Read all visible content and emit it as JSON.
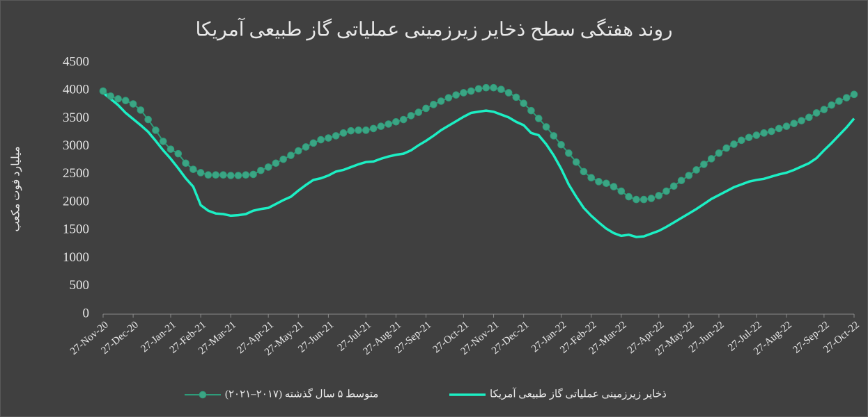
{
  "chart_data": {
    "type": "line",
    "title": "روند هفتگی سطح ذخایر زیرزمینی عملیاتی گاز طبیعی آمریکا",
    "y_label": "میلیارد فوت مکعب",
    "categories": [
      "27-Nov-20",
      null,
      null,
      null,
      "27-Dec-20",
      null,
      null,
      null,
      null,
      "27-Jan-21",
      null,
      null,
      null,
      "27-Feb-21",
      null,
      null,
      null,
      "27-Mar-21",
      null,
      null,
      null,
      null,
      "27-Apr-21",
      null,
      null,
      null,
      "27-May-21",
      null,
      null,
      null,
      "27-Jun-21",
      null,
      null,
      null,
      null,
      "27-Jul-21",
      null,
      null,
      null,
      "27-Aug-21",
      null,
      null,
      null,
      "27-Sep-21",
      null,
      null,
      null,
      null,
      "27-Oct-21",
      null,
      null,
      null,
      "27-Nov-21",
      null,
      null,
      null,
      "27-Dec-21",
      null,
      null,
      null,
      null,
      "27-Jan-22",
      null,
      null,
      null,
      "27-Feb-22",
      null,
      null,
      null,
      "27-Mar-22",
      null,
      null,
      null,
      null,
      "27-Apr-22",
      null,
      null,
      null,
      "27-May-22",
      null,
      null,
      null,
      "27-Jun-22",
      null,
      null,
      null,
      null,
      "27-Jul-22",
      null,
      null,
      null,
      "27-Aug-22",
      null,
      null,
      null,
      null,
      "27-Sep-22",
      null,
      null,
      null,
      "27-Oct-22"
    ],
    "series": [
      {
        "name": "متوسط ۵ سال گذشته (۲۰۱۷–۲۰۲۱)",
        "color": "#2e9c7a",
        "marker": true,
        "values": [
          3990,
          3900,
          3850,
          3820,
          3760,
          3650,
          3480,
          3290,
          3090,
          2950,
          2870,
          2700,
          2590,
          2530,
          2490,
          2490,
          2490,
          2480,
          2480,
          2490,
          2500,
          2570,
          2630,
          2700,
          2770,
          2840,
          2920,
          2990,
          3060,
          3120,
          3150,
          3190,
          3240,
          3280,
          3290,
          3290,
          3320,
          3360,
          3400,
          3440,
          3480,
          3550,
          3610,
          3680,
          3750,
          3810,
          3870,
          3920,
          3960,
          3990,
          4030,
          4050,
          4050,
          4020,
          3960,
          3880,
          3770,
          3640,
          3500,
          3350,
          3190,
          3030,
          2880,
          2720,
          2550,
          2440,
          2370,
          2340,
          2280,
          2200,
          2100,
          2050,
          2050,
          2070,
          2120,
          2200,
          2290,
          2390,
          2480,
          2580,
          2680,
          2780,
          2880,
          2970,
          3040,
          3110,
          3160,
          3200,
          3240,
          3270,
          3320,
          3360,
          3410,
          3460,
          3520,
          3600,
          3660,
          3740,
          3810,
          3870,
          3930
        ]
      },
      {
        "name": "ذخایر زیرزمینی عملیاتی گاز طبیعی آمریکا",
        "color": "#1cefc4",
        "marker": false,
        "values": [
          3960,
          3850,
          3740,
          3600,
          3490,
          3380,
          3260,
          3100,
          2930,
          2780,
          2610,
          2430,
          2280,
          1950,
          1850,
          1800,
          1790,
          1760,
          1770,
          1790,
          1850,
          1880,
          1900,
          1970,
          2040,
          2100,
          2210,
          2310,
          2400,
          2430,
          2480,
          2550,
          2580,
          2630,
          2680,
          2720,
          2730,
          2780,
          2820,
          2850,
          2870,
          2930,
          3020,
          3100,
          3190,
          3290,
          3370,
          3450,
          3530,
          3600,
          3620,
          3640,
          3620,
          3570,
          3520,
          3440,
          3380,
          3240,
          3200,
          3040,
          2840,
          2600,
          2320,
          2100,
          1900,
          1760,
          1640,
          1530,
          1450,
          1400,
          1420,
          1380,
          1390,
          1440,
          1490,
          1560,
          1640,
          1720,
          1800,
          1880,
          1970,
          2060,
          2130,
          2200,
          2270,
          2320,
          2370,
          2400,
          2420,
          2460,
          2500,
          2530,
          2580,
          2640,
          2700,
          2790,
          2930,
          3060,
          3200,
          3340,
          3500
        ]
      }
    ],
    "ylim": [
      0,
      4500
    ],
    "yticks": [
      0,
      500,
      1000,
      1500,
      2000,
      2500,
      3000,
      3500,
      4000,
      4500
    ],
    "grid": false,
    "legend": "bottom"
  }
}
